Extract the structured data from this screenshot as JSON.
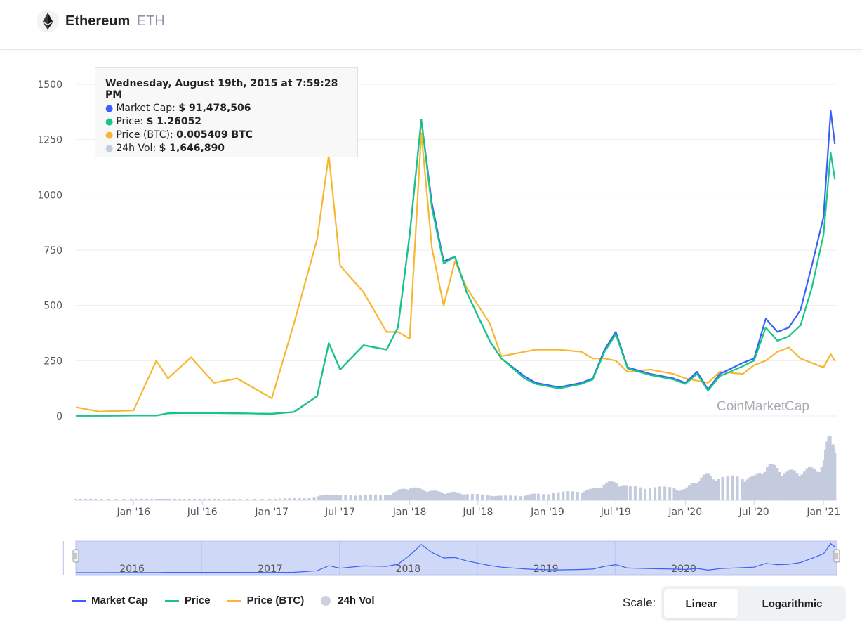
{
  "header": {
    "name": "Ethereum",
    "symbol": "ETH"
  },
  "tooltip": {
    "title": "Wednesday, August 19th, 2015 at 7:59:28 PM",
    "rows": [
      {
        "label": "Market Cap",
        "value": "$ 91,478,506",
        "color": "#3861fb"
      },
      {
        "label": "Price",
        "value": "$ 1.26052",
        "color": "#16c784"
      },
      {
        "label": "Price (BTC)",
        "value": "0.005409 BTC",
        "color": "#f7b731"
      },
      {
        "label": "24h Vol",
        "value": "$ 1,646,890",
        "color": "#c4cbdc"
      }
    ]
  },
  "watermark": "CoinMarketCap",
  "legend": [
    {
      "label": "Market Cap",
      "color": "#3861fb",
      "kind": "line"
    },
    {
      "label": "Price",
      "color": "#16c784",
      "kind": "line"
    },
    {
      "label": "Price (BTC)",
      "color": "#f7b731",
      "kind": "line"
    },
    {
      "label": "24h Vol",
      "color": "#c4cbdc",
      "kind": "circle"
    }
  ],
  "scale": {
    "label": "Scale:",
    "options": [
      "Linear",
      "Logarithmic"
    ],
    "selected": "Linear"
  },
  "chart_data": {
    "type": "line",
    "ylim": [
      0,
      1500
    ],
    "yticks": [
      0,
      250,
      500,
      750,
      1000,
      1250,
      1500
    ],
    "xtick_labels": [
      "Jan '16",
      "Jul '16",
      "Jan '17",
      "Jul '17",
      "Jan '18",
      "Jul '18",
      "Jan '19",
      "Jul '19",
      "Jan '20",
      "Jul '20",
      "Jan '21"
    ],
    "navigator_labels": [
      "2016",
      "2017",
      "2018",
      "2019",
      "2020"
    ],
    "x_dates": [
      "2015-08",
      "2015-10",
      "2016-01",
      "2016-03",
      "2016-04",
      "2016-06",
      "2016-08",
      "2016-10",
      "2017-01",
      "2017-03",
      "2017-05",
      "2017-06",
      "2017-07",
      "2017-09",
      "2017-11",
      "2017-12",
      "2018-01",
      "2018-02",
      "2018-03",
      "2018-04",
      "2018-05",
      "2018-06",
      "2018-08",
      "2018-09",
      "2018-11",
      "2018-12",
      "2019-02",
      "2019-04",
      "2019-05",
      "2019-06",
      "2019-07",
      "2019-08",
      "2019-10",
      "2019-12",
      "2020-01",
      "2020-02",
      "2020-03",
      "2020-04",
      "2020-06",
      "2020-07",
      "2020-08",
      "2020-09",
      "2020-10",
      "2020-11",
      "2020-12",
      "2021-01",
      "2021-01-20",
      "2021-01-31"
    ],
    "series": [
      {
        "name": "Market Cap",
        "color": "#3861fb",
        "values": [
          1,
          1,
          2,
          2,
          12,
          14,
          13,
          12,
          10,
          18,
          90,
          330,
          210,
          320,
          300,
          400,
          820,
          1340,
          960,
          700,
          720,
          560,
          340,
          260,
          180,
          150,
          130,
          150,
          170,
          300,
          380,
          220,
          190,
          170,
          150,
          200,
          120,
          190,
          240,
          260,
          440,
          380,
          400,
          480,
          680,
          900,
          1380,
          1230
        ]
      },
      {
        "name": "Price",
        "color": "#16c784",
        "values": [
          1,
          1,
          2,
          2,
          12,
          14,
          13,
          12,
          10,
          18,
          90,
          330,
          210,
          320,
          300,
          400,
          820,
          1340,
          940,
          690,
          720,
          560,
          340,
          260,
          170,
          145,
          125,
          145,
          165,
          290,
          370,
          215,
          185,
          165,
          145,
          190,
          115,
          180,
          225,
          250,
          400,
          340,
          360,
          410,
          580,
          820,
          1190,
          1070
        ]
      },
      {
        "name": "Price (BTC)",
        "color": "#f7b731",
        "values": [
          40,
          20,
          25,
          250,
          170,
          265,
          150,
          170,
          80,
          420,
          800,
          1180,
          680,
          560,
          380,
          380,
          350,
          1280,
          760,
          500,
          700,
          580,
          420,
          270,
          290,
          300,
          300,
          290,
          260,
          260,
          250,
          200,
          210,
          190,
          170,
          160,
          150,
          200,
          190,
          230,
          250,
          290,
          310,
          260,
          240,
          220,
          280,
          250
        ]
      }
    ],
    "volume_relative": [
      1,
      1,
      1,
      1,
      1,
      1,
      1,
      1,
      1,
      2,
      4,
      8,
      6,
      7,
      6,
      12,
      18,
      14,
      12,
      10,
      10,
      8,
      6,
      5,
      6,
      8,
      10,
      12,
      14,
      22,
      25,
      18,
      18,
      16,
      14,
      28,
      35,
      30,
      32,
      30,
      48,
      44,
      38,
      40,
      42,
      50,
      100,
      60
    ]
  }
}
